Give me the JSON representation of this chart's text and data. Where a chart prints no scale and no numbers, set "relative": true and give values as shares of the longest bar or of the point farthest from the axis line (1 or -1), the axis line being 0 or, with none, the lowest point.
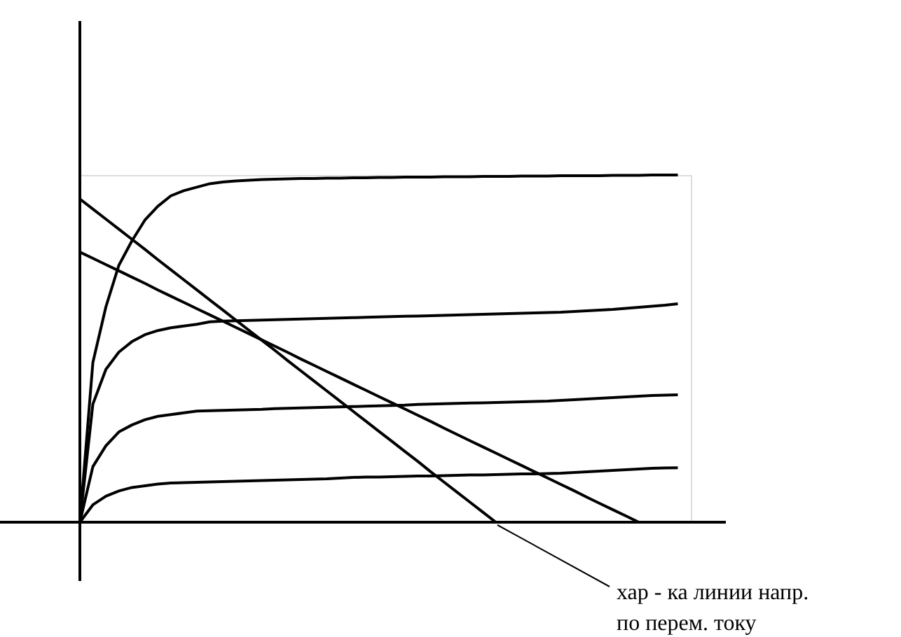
{
  "chart_data": {
    "type": "line",
    "relative": true,
    "marker": "none",
    "line_style": "solid",
    "categories": [
      null,
      null,
      null,
      null,
      null,
      null,
      null,
      null,
      null,
      null,
      null,
      null,
      null,
      null,
      null,
      null,
      null,
      null,
      null,
      null,
      null,
      null,
      null,
      null,
      null,
      null,
      null,
      null,
      null,
      null,
      null,
      null,
      null,
      null,
      null,
      null,
      null,
      null,
      null,
      null,
      null,
      null,
      null,
      null,
      null,
      null,
      null,
      null
    ],
    "series": [
      {
        "color": "#000000",
        "values": [
          0,
          0.46,
          0.62,
          0.74,
          0.81,
          0.87,
          0.91,
          0.94,
          0.955,
          0.965,
          0.975,
          0.98,
          0.983,
          0.985,
          0.987,
          0.988,
          0.989,
          0.99,
          0.99,
          0.991,
          0.991,
          0.992,
          0.992,
          0.993,
          0.993,
          0.994,
          0.994,
          0.994,
          0.995,
          0.995,
          0.995,
          0.996,
          0.996,
          0.996,
          0.997,
          0.997,
          0.997,
          0.998,
          0.998,
          0.998,
          0.998,
          0.999,
          0.999,
          0.999,
          1.0,
          1.0,
          1.0,
          null
        ]
      },
      {
        "color": "#000000",
        "values": [
          0,
          0.34,
          0.44,
          0.49,
          0.52,
          0.54,
          0.552,
          0.56,
          0.565,
          0.57,
          0.577,
          0.579,
          0.58,
          0.581,
          0.582,
          0.583,
          0.584,
          0.585,
          0.586,
          0.587,
          0.588,
          0.589,
          0.59,
          0.591,
          0.592,
          0.593,
          0.594,
          0.595,
          0.596,
          0.597,
          0.598,
          0.599,
          0.6,
          0.601,
          0.602,
          0.603,
          0.604,
          0.605,
          0.607,
          0.609,
          0.611,
          0.613,
          0.616,
          0.619,
          0.622,
          0.625,
          0.629,
          null
        ]
      },
      {
        "color": "#000000",
        "values": [
          0,
          0.16,
          0.22,
          0.26,
          0.28,
          0.295,
          0.305,
          0.31,
          0.315,
          0.32,
          0.321,
          0.322,
          0.323,
          0.324,
          0.325,
          0.327,
          0.328,
          0.329,
          0.33,
          0.331,
          0.332,
          0.333,
          0.334,
          0.335,
          0.336,
          0.337,
          0.339,
          0.34,
          0.341,
          0.342,
          0.343,
          0.344,
          0.345,
          0.346,
          0.347,
          0.348,
          0.349,
          0.351,
          0.353,
          0.355,
          0.357,
          0.359,
          0.361,
          0.363,
          0.365,
          0.366,
          0.367,
          null
        ]
      },
      {
        "color": "#000000",
        "values": [
          0,
          0.05,
          0.075,
          0.09,
          0.1,
          0.105,
          0.11,
          0.113,
          0.114,
          0.115,
          0.116,
          0.117,
          0.118,
          0.119,
          0.12,
          0.121,
          0.122,
          0.123,
          0.124,
          0.125,
          0.127,
          0.129,
          0.13,
          0.13,
          0.131,
          0.132,
          0.133,
          0.133,
          0.134,
          0.135,
          0.136,
          0.136,
          0.137,
          0.138,
          0.139,
          0.139,
          0.14,
          0.141,
          0.143,
          0.145,
          0.147,
          0.149,
          0.151,
          0.153,
          0.155,
          0.156,
          0.157,
          null
        ]
      },
      {
        "color": "#000000",
        "values": [
          0.931,
          0.902,
          0.873,
          0.844,
          0.815,
          0.786,
          0.756,
          0.727,
          0.698,
          0.669,
          0.64,
          0.611,
          0.582,
          0.553,
          0.524,
          0.495,
          0.465,
          0.436,
          0.407,
          0.378,
          0.349,
          0.32,
          0.291,
          0.262,
          0.233,
          0.204,
          0.175,
          0.145,
          0.116,
          0.087,
          0.058,
          0.029,
          0,
          null,
          null,
          null,
          null,
          null,
          null,
          null,
          null,
          null,
          null,
          null,
          null,
          null,
          null,
          null
        ]
      },
      {
        "color": "#000000",
        "values": [
          0.778,
          0.76,
          0.742,
          0.724,
          0.706,
          0.688,
          0.669,
          0.651,
          0.633,
          0.615,
          0.597,
          0.579,
          0.561,
          0.543,
          0.525,
          0.507,
          0.489,
          0.47,
          0.452,
          0.434,
          0.416,
          0.398,
          0.38,
          0.362,
          0.344,
          0.326,
          0.308,
          0.29,
          0.271,
          0.253,
          0.235,
          0.217,
          0.199,
          0.181,
          0.163,
          0.145,
          0.127,
          0.109,
          0.091,
          0.072,
          0.054,
          0.036,
          0.018,
          0,
          null,
          null,
          null,
          null
        ]
      }
    ],
    "annotations": [
      "хар - ка линии напр.\nпо перем. току"
    ]
  }
}
